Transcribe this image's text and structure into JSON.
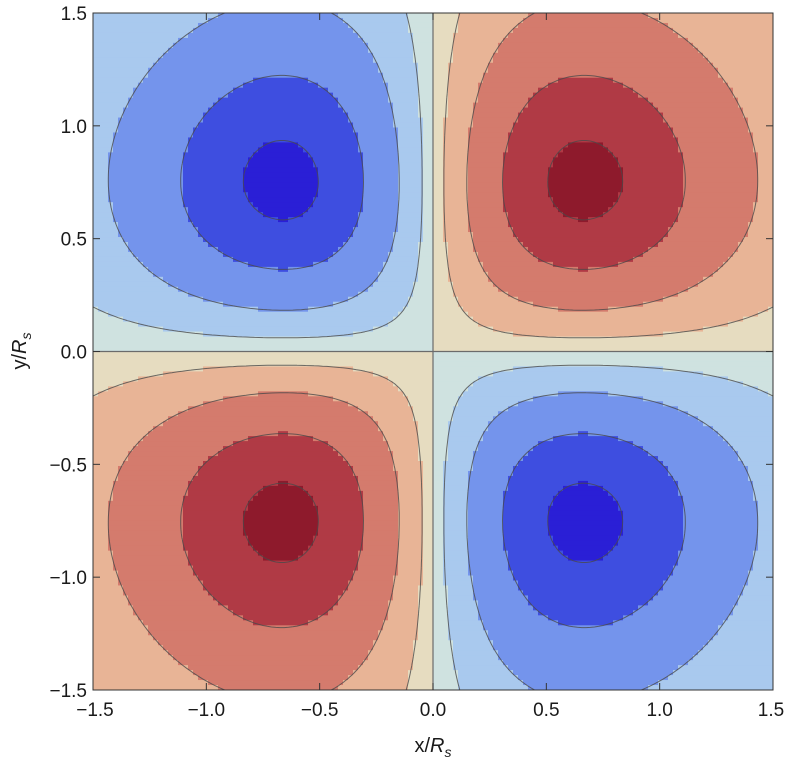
{
  "chart_data": {
    "type": "contour",
    "xlabel_main": "x/",
    "xlabel_italic": "R",
    "xlabel_sub": "s",
    "ylabel_main": "y/",
    "ylabel_italic": "R",
    "ylabel_sub": "s",
    "xlim": [
      -1.5,
      1.5
    ],
    "ylim": [
      -1.5,
      1.5
    ],
    "x_ticks": [
      -1.5,
      -1.0,
      -0.5,
      0.0,
      0.5,
      1.0,
      1.5
    ],
    "y_ticks": [
      -1.5,
      -1.0,
      -0.5,
      0.0,
      0.5,
      1.0,
      1.5
    ],
    "x_tick_labels": [
      "−1.5",
      "−1.0",
      "−0.5",
      "0.0",
      "0.5",
      "1.0",
      "1.5"
    ],
    "y_tick_labels": [
      "−1.5",
      "−1.0",
      "−0.5",
      "0.0",
      "0.5",
      "1.0",
      "1.5"
    ],
    "grid": false,
    "axes_lines_at_zero": true,
    "field": "quadrupole pattern f(x,y) ∝ x·y·exp(−(x²+y²)); positive (red) in quadrants I and III, negative (blue) in quadrants II and IV",
    "extrema": [
      {
        "x": 0.63,
        "y": 0.64,
        "sign": "max"
      },
      {
        "x": -0.64,
        "y": -0.65,
        "sign": "max"
      },
      {
        "x": -0.63,
        "y": 0.64,
        "sign": "min"
      },
      {
        "x": 0.63,
        "y": -0.64,
        "sign": "min"
      }
    ],
    "levels": [
      -0.38,
      -0.28,
      -0.15,
      -0.05,
      0.0,
      0.05,
      0.15,
      0.28,
      0.38
    ],
    "colors": {
      "neg_4": "#2a1fd6",
      "neg_3": "#3e4ee0",
      "neg_2": "#7494ec",
      "neg_1": "#a9c9ee",
      "neg_0": "#cfe2e0",
      "pos_0": "#e6dcc0",
      "pos_1": "#e8b496",
      "pos_2": "#d47b6d",
      "pos_3": "#b03a45",
      "pos_4": "#8e1a2c"
    }
  }
}
